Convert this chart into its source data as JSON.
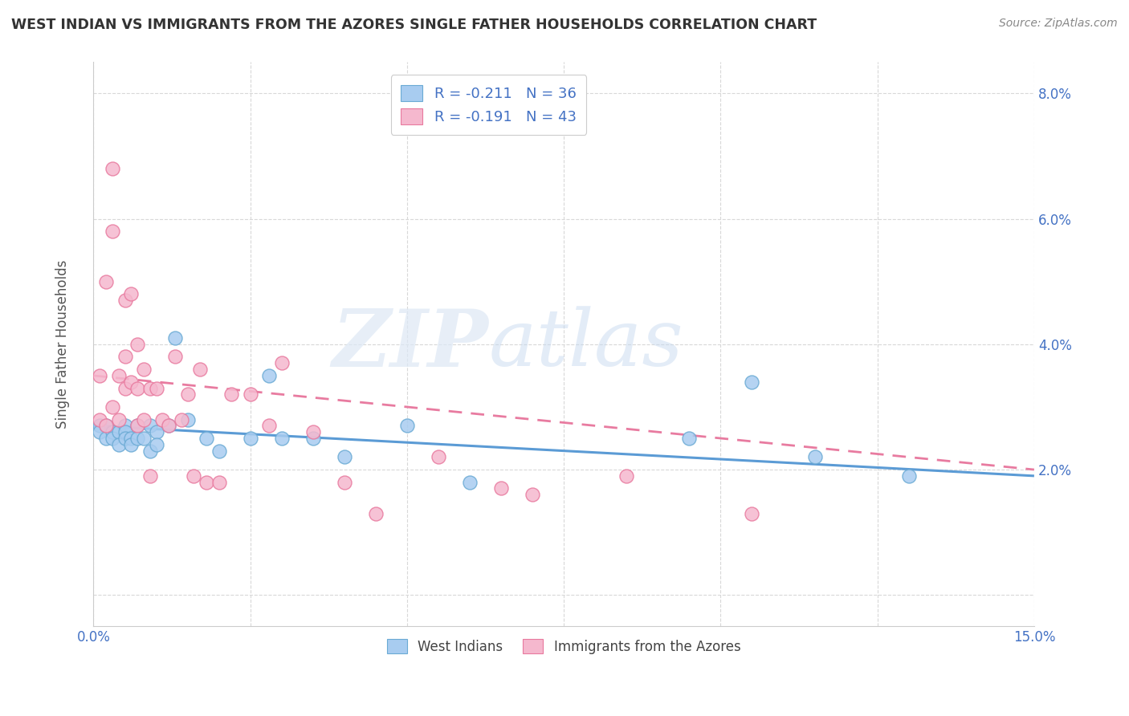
{
  "title": "WEST INDIAN VS IMMIGRANTS FROM THE AZORES SINGLE FATHER HOUSEHOLDS CORRELATION CHART",
  "source": "Source: ZipAtlas.com",
  "ylabel": "Single Father Households",
  "xlim": [
    0.0,
    0.15
  ],
  "ylim": [
    -0.005,
    0.085
  ],
  "yticks": [
    0.0,
    0.02,
    0.04,
    0.06,
    0.08
  ],
  "ytick_labels": [
    "",
    "2.0%",
    "4.0%",
    "6.0%",
    "8.0%"
  ],
  "xticks": [
    0.0,
    0.025,
    0.05,
    0.075,
    0.1,
    0.125,
    0.15
  ],
  "xtick_labels": [
    "0.0%",
    "",
    "",
    "",
    "",
    "",
    "15.0%"
  ],
  "blue_R": -0.211,
  "blue_N": 36,
  "pink_R": -0.191,
  "pink_N": 43,
  "blue_color": "#a8ccf0",
  "pink_color": "#f5b8ce",
  "blue_edge_color": "#6aaad4",
  "pink_edge_color": "#e8799e",
  "blue_line_color": "#5b9bd5",
  "pink_line_color": "#e87ba0",
  "text_color": "#4472c4",
  "legend_label_blue": "West Indians",
  "legend_label_pink": "Immigrants from the Azores",
  "watermark_zip": "ZIP",
  "watermark_atlas": "atlas",
  "blue_x": [
    0.001,
    0.001,
    0.002,
    0.002,
    0.003,
    0.003,
    0.004,
    0.004,
    0.005,
    0.005,
    0.005,
    0.006,
    0.006,
    0.007,
    0.007,
    0.008,
    0.009,
    0.009,
    0.01,
    0.01,
    0.012,
    0.013,
    0.015,
    0.018,
    0.02,
    0.025,
    0.028,
    0.03,
    0.035,
    0.04,
    0.05,
    0.06,
    0.095,
    0.105,
    0.115,
    0.13
  ],
  "blue_y": [
    0.027,
    0.026,
    0.027,
    0.025,
    0.026,
    0.025,
    0.026,
    0.024,
    0.027,
    0.026,
    0.025,
    0.025,
    0.024,
    0.027,
    0.025,
    0.025,
    0.027,
    0.023,
    0.026,
    0.024,
    0.027,
    0.041,
    0.028,
    0.025,
    0.023,
    0.025,
    0.035,
    0.025,
    0.025,
    0.022,
    0.027,
    0.018,
    0.025,
    0.034,
    0.022,
    0.019
  ],
  "pink_x": [
    0.001,
    0.001,
    0.002,
    0.002,
    0.003,
    0.003,
    0.003,
    0.004,
    0.004,
    0.005,
    0.005,
    0.005,
    0.006,
    0.006,
    0.007,
    0.007,
    0.007,
    0.008,
    0.008,
    0.009,
    0.009,
    0.01,
    0.011,
    0.012,
    0.013,
    0.014,
    0.015,
    0.016,
    0.017,
    0.018,
    0.02,
    0.022,
    0.025,
    0.028,
    0.03,
    0.035,
    0.04,
    0.045,
    0.055,
    0.065,
    0.07,
    0.085,
    0.105
  ],
  "pink_y": [
    0.035,
    0.028,
    0.05,
    0.027,
    0.068,
    0.058,
    0.03,
    0.035,
    0.028,
    0.047,
    0.038,
    0.033,
    0.048,
    0.034,
    0.04,
    0.033,
    0.027,
    0.036,
    0.028,
    0.033,
    0.019,
    0.033,
    0.028,
    0.027,
    0.038,
    0.028,
    0.032,
    0.019,
    0.036,
    0.018,
    0.018,
    0.032,
    0.032,
    0.027,
    0.037,
    0.026,
    0.018,
    0.013,
    0.022,
    0.017,
    0.016,
    0.019,
    0.013
  ],
  "blue_line_start_y": 0.027,
  "blue_line_end_y": 0.019,
  "pink_line_start_y": 0.035,
  "pink_line_end_y": 0.02
}
